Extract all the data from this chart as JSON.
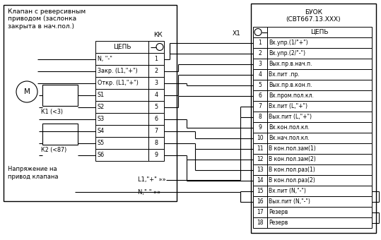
{
  "title_left": "Клапан с реверсивным\nприводом (заслонка\nзакрыта в нач.пол.)",
  "title_right": "БУОК\n(СВТ667.13.ХХХ)",
  "kk_label": "КК",
  "x1_label": "Х1",
  "left_rows": [
    [
      "N, \"-\"",
      "1"
    ],
    [
      "Закр. (L1,\"+\")",
      "2"
    ],
    [
      "Откр. (L1,\"+\")",
      "3"
    ],
    [
      "S1",
      "4"
    ],
    [
      "S2",
      "5"
    ],
    [
      "S3",
      "6"
    ],
    [
      "S4",
      "7"
    ],
    [
      "S5",
      "8"
    ],
    [
      "S6",
      "9"
    ]
  ],
  "right_rows": [
    [
      "1",
      "Вх.упр.(1/\"+\")"
    ],
    [
      "2",
      "Вх.упр.(2/\"-\")"
    ],
    [
      "3",
      "Вых.пр.в.нач.п."
    ],
    [
      "4",
      "Вх.пит .пр."
    ],
    [
      "5",
      "Вых.пр.в.кон.п."
    ],
    [
      "6",
      "Вх.пром.пол.кл."
    ],
    [
      "7",
      "Вх.пит (L,\"+\")"
    ],
    [
      "8",
      "Вых.пит (L,\"+\")"
    ],
    [
      "9",
      "Вх.кон.пол.кл."
    ],
    [
      "10",
      "Вх.нач.пол.кл."
    ],
    [
      "11",
      "В кон.пол.зам(1)"
    ],
    [
      "12",
      "В кон.пол.зам(2)"
    ],
    [
      "13",
      "В кон.пол.раз(1)"
    ],
    [
      "14",
      "В кон.пол.раз(2)"
    ],
    [
      "15",
      "Вх.пит (N,\"-\")"
    ],
    [
      "16",
      "Вых.пит (N,\"-\")"
    ],
    [
      "17",
      "Резерв"
    ],
    [
      "18",
      "Резерв"
    ]
  ],
  "k1_label": "К1 (<3)",
  "k2_label": "К2 (<87)",
  "voltage_label": "Напряжение на\nпривод клапана",
  "l1_label": "L1,\"+\" »»",
  "n_label": "N,\"-\" »»",
  "bg_color": "#ffffff",
  "line_color": "#000000"
}
